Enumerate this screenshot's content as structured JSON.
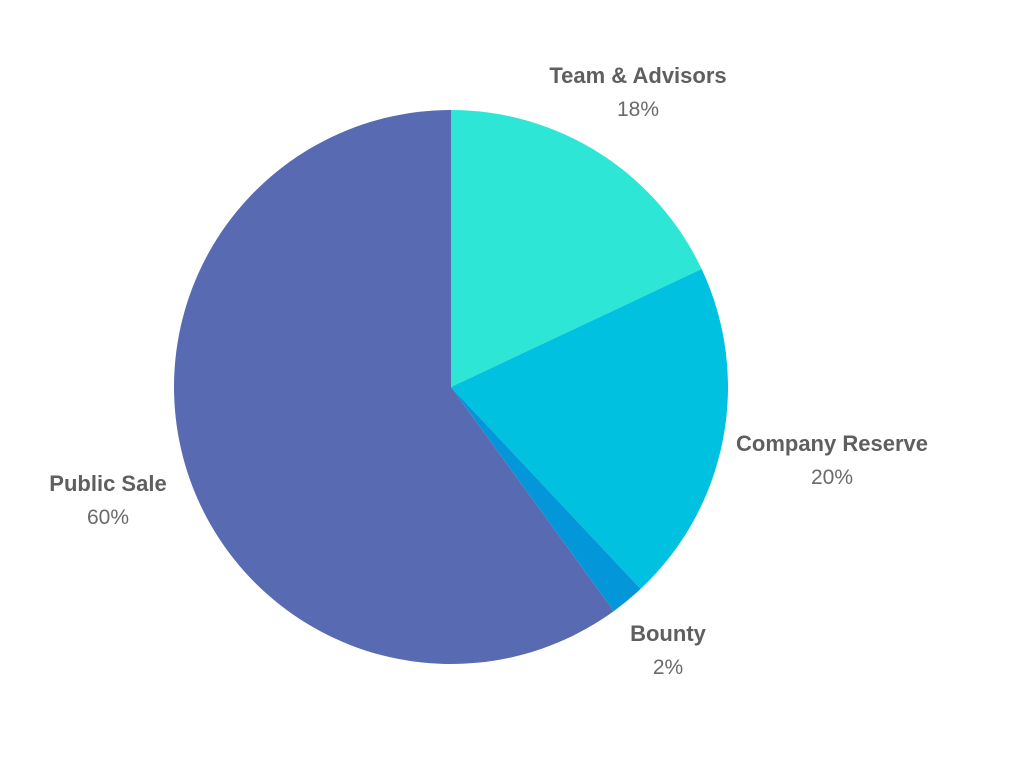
{
  "chart_data": {
    "type": "pie",
    "title": "",
    "slices": [
      {
        "label": "Team & Advisors",
        "value": 18,
        "display": "18%",
        "color": "#2ee6d6"
      },
      {
        "label": "Company Reserve",
        "value": 20,
        "display": "20%",
        "color": "#00c1df"
      },
      {
        "label": "Bounty",
        "value": 2,
        "display": "2%",
        "color": "#0397d9"
      },
      {
        "label": "Public Sale",
        "value": 60,
        "display": "60%",
        "color": "#586ab1"
      }
    ],
    "start": "top",
    "direction": "clockwise",
    "legend": "none",
    "labels_outside": true
  }
}
